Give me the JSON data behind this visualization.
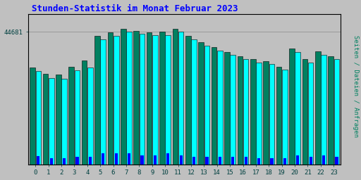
{
  "title": "Stunden-Statistik im Monat Februar 2023",
  "title_color": "#0000ff",
  "title_fontsize": 9,
  "background_color": "#c0c0c0",
  "plot_bg_color": "#c0c0c0",
  "ylabel_label": "Seiten / Dateien / Anfragen",
  "ylabel_color": "#008060",
  "ytick_label": "44681",
  "ytick_color": "#004040",
  "xtick_color": "#004040",
  "hours": [
    0,
    1,
    2,
    3,
    4,
    5,
    6,
    7,
    8,
    9,
    10,
    11,
    12,
    13,
    14,
    15,
    16,
    17,
    18,
    19,
    20,
    21,
    22,
    23
  ],
  "bar_cyan_heights": [
    0.62,
    0.575,
    0.57,
    0.625,
    0.645,
    0.83,
    0.855,
    0.88,
    0.87,
    0.858,
    0.86,
    0.88,
    0.832,
    0.79,
    0.758,
    0.728,
    0.698,
    0.678,
    0.668,
    0.628,
    0.748,
    0.678,
    0.728,
    0.698
  ],
  "bar_teal_heights": [
    0.645,
    0.6,
    0.595,
    0.65,
    0.69,
    0.855,
    0.875,
    0.9,
    0.888,
    0.878,
    0.882,
    0.9,
    0.852,
    0.812,
    0.778,
    0.748,
    0.718,
    0.698,
    0.688,
    0.648,
    0.768,
    0.7,
    0.75,
    0.72
  ],
  "bar_blue_heights": [
    0.055,
    0.042,
    0.042,
    0.052,
    0.052,
    0.072,
    0.072,
    0.072,
    0.062,
    0.062,
    0.072,
    0.062,
    0.052,
    0.052,
    0.052,
    0.052,
    0.052,
    0.042,
    0.042,
    0.042,
    0.062,
    0.052,
    0.062,
    0.052
  ],
  "cyan_color": "#00ffff",
  "teal_color": "#008060",
  "blue_color": "#0000ff",
  "border_color": "#000000",
  "grid_color": "#999999",
  "ymax": 1.0,
  "ymin": 0.0,
  "ytick_pos": 0.88,
  "group_width": 0.9
}
